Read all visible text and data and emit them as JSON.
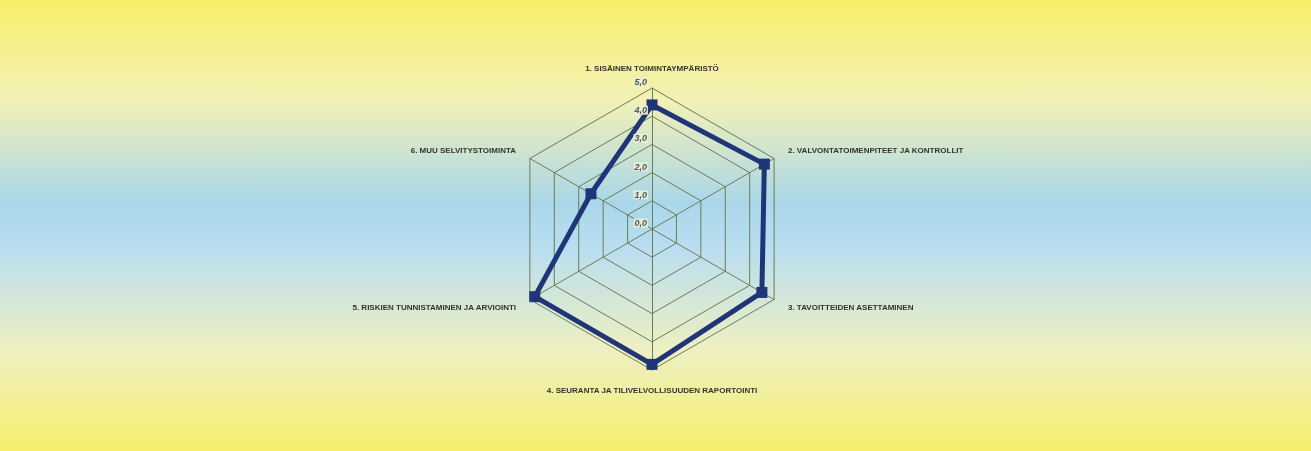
{
  "chart_data": {
    "type": "radar",
    "categories": [
      "1. SISÄINEN TOIMINTAYMPÄRISTÖ",
      "2. VALVONTATOIMENPITEET JA KONTROLLIT",
      "3. TAVOITTEIDEN ASETTAMINEN",
      "4. SEURANTA JA TILIVELVOLLISUUDEN RAPORTOINTI",
      "5. RISKIEN TUNNISTAMINEN JA ARVIOINTI",
      "6. MUU SELVITYSTOIMINTA"
    ],
    "series": [
      {
        "color": "#1f3578",
        "values": [
          4.4,
          4.6,
          4.5,
          4.8,
          4.8,
          2.5
        ]
      }
    ],
    "ylim": [
      0,
      5
    ],
    "yticks": [
      {
        "value": 0,
        "label": "0,0"
      },
      {
        "value": 1,
        "label": "1,0"
      },
      {
        "value": 2,
        "label": "2,0"
      },
      {
        "value": 3,
        "label": "3,0"
      },
      {
        "value": 4,
        "label": "4,0"
      },
      {
        "value": 5,
        "label": "5,0"
      }
    ],
    "grid": true,
    "marker": "square",
    "line_style": "solid"
  }
}
